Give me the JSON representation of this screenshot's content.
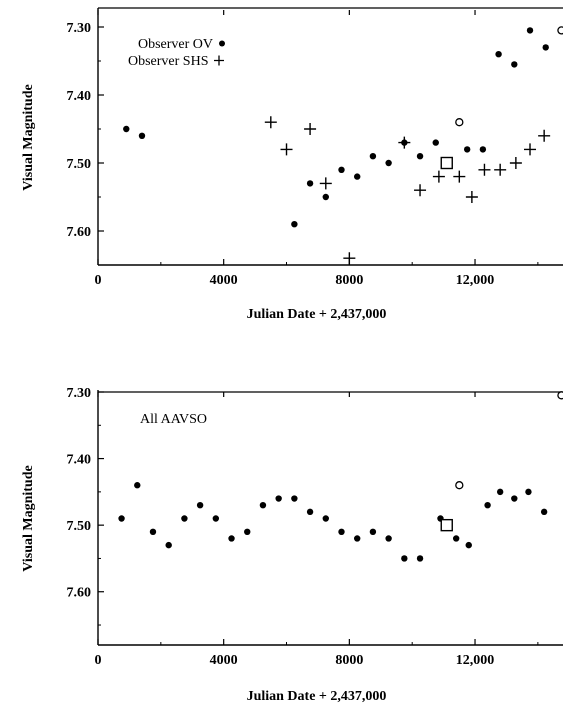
{
  "chart_data": [
    {
      "type": "scatter",
      "xlabel": "Julian Date + 2,437,000",
      "ylabel": "Visual Magnitude",
      "xlim": [
        0,
        14800
      ],
      "ylim": [
        7.275,
        7.65
      ],
      "y_inverted": true,
      "x_ticks": [
        0,
        4000,
        8000,
        12000
      ],
      "x_tick_labels": [
        "0",
        "4000",
        "8000",
        "12,000"
      ],
      "y_ticks": [
        7.3,
        7.4,
        7.5,
        7.6
      ],
      "y_tick_labels": [
        "7.30",
        "7.40",
        "7.50",
        "7.60"
      ],
      "legend": [
        {
          "label": "Observer OV",
          "marker": "dot"
        },
        {
          "label": "Observer SHS",
          "marker": "plus"
        }
      ],
      "series": [
        {
          "name": "Observer OV",
          "marker": "dot",
          "points": [
            [
              900,
              7.45
            ],
            [
              1400,
              7.46
            ],
            [
              6250,
              7.59
            ],
            [
              6750,
              7.53
            ],
            [
              7250,
              7.55
            ],
            [
              7750,
              7.51
            ],
            [
              8250,
              7.52
            ],
            [
              8750,
              7.49
            ],
            [
              9250,
              7.5
            ],
            [
              9750,
              7.47
            ],
            [
              10250,
              7.49
            ],
            [
              10750,
              7.47
            ],
            [
              11750,
              7.48
            ],
            [
              12250,
              7.48
            ],
            [
              12750,
              7.34
            ],
            [
              13250,
              7.355
            ],
            [
              13750,
              7.305
            ],
            [
              14250,
              7.33
            ]
          ]
        },
        {
          "name": "Observer SHS",
          "marker": "plus",
          "points": [
            [
              5500,
              7.44
            ],
            [
              6000,
              7.48
            ],
            [
              6750,
              7.45
            ],
            [
              7250,
              7.53
            ],
            [
              8000,
              7.64
            ],
            [
              9750,
              7.47
            ],
            [
              10250,
              7.54
            ],
            [
              10850,
              7.52
            ],
            [
              11500,
              7.52
            ],
            [
              11900,
              7.55
            ],
            [
              12300,
              7.51
            ],
            [
              12800,
              7.51
            ],
            [
              13300,
              7.5
            ],
            [
              13750,
              7.48
            ],
            [
              14200,
              7.46
            ]
          ]
        },
        {
          "marker": "open-circle",
          "points": [
            [
              11500,
              7.44
            ],
            [
              14750,
              7.305
            ]
          ]
        },
        {
          "marker": "open-square",
          "points": [
            [
              11100,
              7.5
            ]
          ]
        }
      ]
    },
    {
      "type": "scatter",
      "title": "All AAVSO",
      "xlabel": "Julian Date + 2,437,000",
      "ylabel": "Visual Magnitude",
      "xlim": [
        0,
        14800
      ],
      "ylim": [
        7.3,
        7.68
      ],
      "y_inverted": true,
      "x_ticks": [
        0,
        4000,
        8000,
        12000
      ],
      "x_tick_labels": [
        "0",
        "4000",
        "8000",
        "12,000"
      ],
      "y_ticks": [
        7.3,
        7.4,
        7.5,
        7.6
      ],
      "y_tick_labels": [
        "7.30",
        "7.40",
        "7.50",
        "7.60"
      ],
      "series": [
        {
          "marker": "dot",
          "points": [
            [
              750,
              7.49
            ],
            [
              1250,
              7.44
            ],
            [
              1750,
              7.51
            ],
            [
              2250,
              7.53
            ],
            [
              2750,
              7.49
            ],
            [
              3250,
              7.47
            ],
            [
              3750,
              7.49
            ],
            [
              4250,
              7.52
            ],
            [
              4750,
              7.51
            ],
            [
              5250,
              7.47
            ],
            [
              5750,
              7.46
            ],
            [
              6250,
              7.46
            ],
            [
              6750,
              7.48
            ],
            [
              7250,
              7.49
            ],
            [
              7750,
              7.51
            ],
            [
              8250,
              7.52
            ],
            [
              8750,
              7.51
            ],
            [
              9250,
              7.52
            ],
            [
              9750,
              7.55
            ],
            [
              10250,
              7.55
            ],
            [
              10900,
              7.49
            ],
            [
              11400,
              7.52
            ],
            [
              11800,
              7.53
            ],
            [
              12400,
              7.47
            ],
            [
              12800,
              7.45
            ],
            [
              13250,
              7.46
            ],
            [
              13700,
              7.45
            ],
            [
              14200,
              7.48
            ]
          ]
        },
        {
          "marker": "open-circle",
          "points": [
            [
              11500,
              7.44
            ],
            [
              14750,
              7.305
            ]
          ]
        },
        {
          "marker": "open-square",
          "points": [
            [
              11100,
              7.5
            ]
          ]
        }
      ]
    }
  ]
}
